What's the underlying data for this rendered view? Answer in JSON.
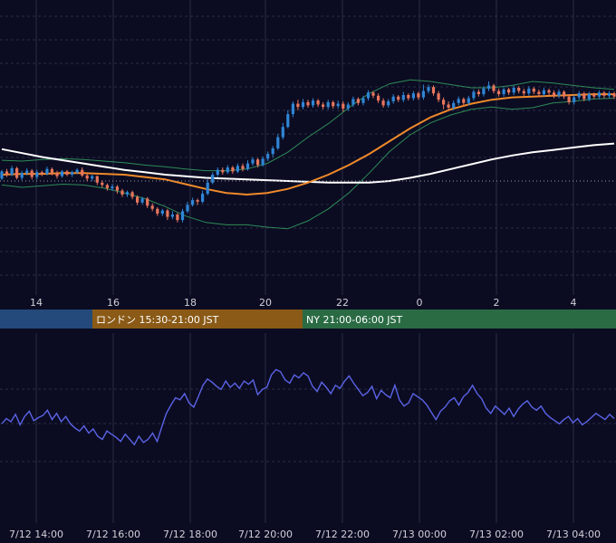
{
  "theme": {
    "background": "#0b0c22",
    "grid": "#2a2d44",
    "dotted": "#9a9aaa",
    "up": "#2f86d6",
    "down": "#e8765d",
    "bb": "#2e8b57",
    "ma_short": "#f08a2a",
    "ma_long": "#ffffff",
    "oscillator": "#5b63e6"
  },
  "sessions": [
    {
      "name": "tokyo",
      "label": "",
      "color": "#234a7a"
    },
    {
      "name": "london",
      "label": "ロンドン 15:30-21:00 JST",
      "color": "#8a5a16"
    },
    {
      "name": "ny",
      "label": "NY 21:00-06:00 JST",
      "color": "#2a6b44"
    }
  ],
  "chart_data": [
    {
      "type": "candlestick",
      "title": "",
      "x_tick_labels": [
        "14",
        "16",
        "18",
        "20",
        "22",
        "0",
        "2",
        "4"
      ],
      "grid": true,
      "legend": "none",
      "reference_line": "dotted horizontal line",
      "candles": [
        [
          0.03,
          0.12,
          0.01,
          0.14
        ],
        [
          0.12,
          0.08,
          0.05,
          0.15
        ],
        [
          0.08,
          0.16,
          0.06,
          0.19
        ],
        [
          0.16,
          0.04,
          0.02,
          0.18
        ],
        [
          0.04,
          0.1,
          0.01,
          0.13
        ],
        [
          0.1,
          0.13,
          0.07,
          0.16
        ],
        [
          0.13,
          0.05,
          0.02,
          0.15
        ],
        [
          0.05,
          0.11,
          0.02,
          0.14
        ],
        [
          0.11,
          0.09,
          0.06,
          0.13
        ],
        [
          0.09,
          0.15,
          0.07,
          0.18
        ],
        [
          0.15,
          0.1,
          0.07,
          0.17
        ],
        [
          0.1,
          0.06,
          0.03,
          0.13
        ],
        [
          0.06,
          0.12,
          0.04,
          0.14
        ],
        [
          0.12,
          0.08,
          0.06,
          0.14
        ],
        [
          0.08,
          0.11,
          0.05,
          0.13
        ],
        [
          0.11,
          0.14,
          0.09,
          0.16
        ],
        [
          0.14,
          0.07,
          0.05,
          0.17
        ],
        [
          0.07,
          0.03,
          0.0,
          0.09
        ],
        [
          0.03,
          0.06,
          0.0,
          0.08
        ],
        [
          0.06,
          -0.02,
          -0.05,
          0.07
        ],
        [
          -0.02,
          -0.05,
          -0.08,
          0.01
        ],
        [
          -0.05,
          -0.09,
          -0.12,
          -0.03
        ],
        [
          -0.09,
          -0.07,
          -0.12,
          -0.04
        ],
        [
          -0.07,
          -0.12,
          -0.16,
          -0.05
        ],
        [
          -0.12,
          -0.17,
          -0.2,
          -0.1
        ],
        [
          -0.17,
          -0.14,
          -0.2,
          -0.12
        ],
        [
          -0.14,
          -0.2,
          -0.23,
          -0.12
        ],
        [
          -0.2,
          -0.27,
          -0.3,
          -0.18
        ],
        [
          -0.27,
          -0.22,
          -0.29,
          -0.2
        ],
        [
          -0.22,
          -0.31,
          -0.34,
          -0.2
        ],
        [
          -0.31,
          -0.35,
          -0.38,
          -0.28
        ],
        [
          -0.35,
          -0.41,
          -0.44,
          -0.33
        ],
        [
          -0.41,
          -0.37,
          -0.44,
          -0.35
        ],
        [
          -0.37,
          -0.45,
          -0.49,
          -0.35
        ],
        [
          -0.45,
          -0.42,
          -0.48,
          -0.38
        ],
        [
          -0.42,
          -0.49,
          -0.52,
          -0.4
        ],
        [
          -0.49,
          -0.38,
          -0.52,
          -0.35
        ],
        [
          -0.38,
          -0.3,
          -0.4,
          -0.26
        ],
        [
          -0.3,
          -0.24,
          -0.32,
          -0.21
        ],
        [
          -0.24,
          -0.26,
          -0.3,
          -0.22
        ],
        [
          -0.26,
          -0.16,
          -0.28,
          -0.12
        ],
        [
          -0.16,
          -0.02,
          -0.18,
          0.02
        ],
        [
          -0.02,
          0.08,
          -0.04,
          0.11
        ],
        [
          0.08,
          0.14,
          0.05,
          0.17
        ],
        [
          0.14,
          0.11,
          0.08,
          0.17
        ],
        [
          0.11,
          0.17,
          0.09,
          0.2
        ],
        [
          0.17,
          0.12,
          0.09,
          0.19
        ],
        [
          0.12,
          0.19,
          0.1,
          0.22
        ],
        [
          0.19,
          0.15,
          0.12,
          0.22
        ],
        [
          0.15,
          0.22,
          0.13,
          0.26
        ],
        [
          0.22,
          0.27,
          0.19,
          0.3
        ],
        [
          0.27,
          0.2,
          0.17,
          0.29
        ],
        [
          0.2,
          0.28,
          0.18,
          0.31
        ],
        [
          0.28,
          0.34,
          0.25,
          0.37
        ],
        [
          0.34,
          0.41,
          0.3,
          0.44
        ],
        [
          0.41,
          0.55,
          0.39,
          0.59
        ],
        [
          0.55,
          0.68,
          0.52,
          0.73
        ],
        [
          0.68,
          0.84,
          0.66,
          0.89
        ],
        [
          0.84,
          0.97,
          0.8,
          1.0
        ],
        [
          0.97,
          0.93,
          0.89,
          1.02
        ],
        [
          0.93,
          0.99,
          0.9,
          1.03
        ],
        [
          0.99,
          0.95,
          0.92,
          1.02
        ],
        [
          0.95,
          1.01,
          0.92,
          1.04
        ],
        [
          1.01,
          0.96,
          0.93,
          1.03
        ],
        [
          0.96,
          0.93,
          0.9,
          0.99
        ],
        [
          0.93,
          0.99,
          0.9,
          1.02
        ],
        [
          0.99,
          0.94,
          0.91,
          1.01
        ],
        [
          0.94,
          0.97,
          0.91,
          1.01
        ],
        [
          0.97,
          0.91,
          0.87,
          1.0
        ],
        [
          0.91,
          0.96,
          0.88,
          0.99
        ],
        [
          0.96,
          1.03,
          0.93,
          1.06
        ],
        [
          1.03,
          0.98,
          0.95,
          1.05
        ],
        [
          0.98,
          1.04,
          0.95,
          1.07
        ],
        [
          1.04,
          1.11,
          1.01,
          1.14
        ],
        [
          1.11,
          1.07,
          1.04,
          1.13
        ],
        [
          1.07,
          1.01,
          0.98,
          1.1
        ],
        [
          1.01,
          0.95,
          0.92,
          1.04
        ],
        [
          0.95,
          1.0,
          0.92,
          1.03
        ],
        [
          1.0,
          1.06,
          0.97,
          1.09
        ],
        [
          1.06,
          1.02,
          0.99,
          1.08
        ],
        [
          1.02,
          1.08,
          0.99,
          1.12
        ],
        [
          1.08,
          1.04,
          1.01,
          1.1
        ],
        [
          1.04,
          1.1,
          1.01,
          1.13
        ],
        [
          1.1,
          1.05,
          1.02,
          1.12
        ],
        [
          1.05,
          1.13,
          1.02,
          1.21
        ],
        [
          1.13,
          1.18,
          1.1,
          1.21
        ],
        [
          1.18,
          1.1,
          1.07,
          1.2
        ],
        [
          1.1,
          1.02,
          0.99,
          1.13
        ],
        [
          1.02,
          0.96,
          0.9,
          1.05
        ],
        [
          0.96,
          0.92,
          0.88,
          1.0
        ],
        [
          0.92,
          0.98,
          0.89,
          1.01
        ],
        [
          0.98,
          1.03,
          0.95,
          1.06
        ],
        [
          1.03,
          0.98,
          0.95,
          1.05
        ],
        [
          0.98,
          1.04,
          0.95,
          1.07
        ],
        [
          1.04,
          1.12,
          1.01,
          1.15
        ],
        [
          1.12,
          1.09,
          1.06,
          1.15
        ],
        [
          1.09,
          1.16,
          1.06,
          1.19
        ],
        [
          1.16,
          1.2,
          1.13,
          1.25
        ],
        [
          1.2,
          1.13,
          1.1,
          1.22
        ],
        [
          1.13,
          1.09,
          1.06,
          1.16
        ],
        [
          1.09,
          1.15,
          1.06,
          1.18
        ],
        [
          1.15,
          1.11,
          1.08,
          1.17
        ],
        [
          1.11,
          1.17,
          1.08,
          1.2
        ],
        [
          1.17,
          1.13,
          1.1,
          1.19
        ],
        [
          1.13,
          1.1,
          1.07,
          1.16
        ],
        [
          1.1,
          1.16,
          1.07,
          1.19
        ],
        [
          1.16,
          1.12,
          1.09,
          1.18
        ],
        [
          1.12,
          1.09,
          1.06,
          1.15
        ],
        [
          1.09,
          1.14,
          1.06,
          1.17
        ],
        [
          1.14,
          1.11,
          1.08,
          1.16
        ],
        [
          1.11,
          1.07,
          1.04,
          1.14
        ],
        [
          1.07,
          1.12,
          1.04,
          1.15
        ],
        [
          1.12,
          1.06,
          1.03,
          1.14
        ],
        [
          1.06,
          0.99,
          0.96,
          1.09
        ],
        [
          0.99,
          1.05,
          0.96,
          1.08
        ],
        [
          1.05,
          1.1,
          1.02,
          1.13
        ],
        [
          1.1,
          1.03,
          1.0,
          1.12
        ],
        [
          1.03,
          1.09,
          1.0,
          1.12
        ],
        [
          1.09,
          1.06,
          1.03,
          1.11
        ],
        [
          1.06,
          1.11,
          1.03,
          1.14
        ],
        [
          1.11,
          1.07,
          1.04,
          1.13
        ],
        [
          1.07,
          1.1,
          1.04,
          1.13
        ],
        [
          1.1,
          1.06,
          1.03,
          1.12
        ]
      ],
      "indicators": {
        "ma_short": [
          0.08,
          0.09,
          0.09,
          0.1,
          0.1,
          0.09,
          0.08,
          0.05,
          0.02,
          -0.04,
          -0.1,
          -0.15,
          -0.17,
          -0.15,
          -0.1,
          -0.02,
          0.08,
          0.2,
          0.34,
          0.5,
          0.66,
          0.8,
          0.9,
          0.97,
          1.02,
          1.05,
          1.06,
          1.07,
          1.08,
          1.09,
          1.09
        ],
        "ma_long": [
          0.4,
          0.35,
          0.3,
          0.26,
          0.22,
          0.18,
          0.14,
          0.11,
          0.08,
          0.06,
          0.04,
          0.03,
          0.02,
          0.01,
          0.0,
          -0.01,
          -0.02,
          -0.02,
          -0.02,
          0.0,
          0.04,
          0.09,
          0.15,
          0.21,
          0.27,
          0.32,
          0.36,
          0.39,
          0.42,
          0.45,
          0.47
        ],
        "bb_upper": [
          0.26,
          0.25,
          0.27,
          0.28,
          0.27,
          0.25,
          0.23,
          0.2,
          0.18,
          0.15,
          0.13,
          0.13,
          0.15,
          0.22,
          0.36,
          0.55,
          0.72,
          0.92,
          1.1,
          1.22,
          1.27,
          1.25,
          1.21,
          1.17,
          1.17,
          1.2,
          1.25,
          1.23,
          1.2,
          1.17,
          1.15
        ],
        "bb_lower": [
          -0.05,
          -0.08,
          -0.06,
          -0.04,
          -0.05,
          -0.09,
          -0.15,
          -0.22,
          -0.32,
          -0.44,
          -0.52,
          -0.55,
          -0.55,
          -0.58,
          -0.6,
          -0.5,
          -0.35,
          -0.15,
          0.1,
          0.37,
          0.58,
          0.73,
          0.83,
          0.9,
          0.93,
          0.9,
          0.92,
          0.98,
          1.0,
          1.03,
          1.04
        ]
      }
    },
    {
      "type": "line",
      "title": "",
      "x_tick_labels": [
        "7/12 14:00",
        "7/12 16:00",
        "7/12 18:00",
        "7/12 20:00",
        "7/12 22:00",
        "7/13 00:00",
        "7/13 02:00",
        "7/13 04:00"
      ],
      "grid": true,
      "series": [
        {
          "values": [
            45,
            50,
            47,
            54,
            44,
            52,
            57,
            48,
            51,
            53,
            58,
            49,
            55,
            47,
            52,
            45,
            41,
            38,
            43,
            36,
            40,
            33,
            30,
            38,
            35,
            32,
            28,
            35,
            30,
            25,
            33,
            27,
            30,
            36,
            28,
            42,
            55,
            63,
            70,
            68,
            74,
            65,
            61,
            71,
            82,
            88,
            85,
            81,
            78,
            86,
            80,
            84,
            79,
            86,
            83,
            87,
            73,
            78,
            80,
            92,
            97,
            95,
            87,
            84,
            92,
            89,
            94,
            91,
            81,
            76,
            85,
            80,
            74,
            82,
            79,
            86,
            91,
            84,
            78,
            72,
            75,
            81,
            69,
            77,
            73,
            70,
            82,
            68,
            62,
            65,
            74,
            71,
            68,
            63,
            56,
            49,
            57,
            61,
            67,
            70,
            63,
            71,
            75,
            82,
            74,
            69,
            60,
            55,
            62,
            58,
            54,
            60,
            52,
            59,
            64,
            67,
            61,
            58,
            62,
            55,
            51,
            48,
            45,
            49,
            52,
            46,
            50,
            44,
            47,
            51,
            55,
            52,
            49,
            54,
            50
          ]
        }
      ]
    }
  ]
}
